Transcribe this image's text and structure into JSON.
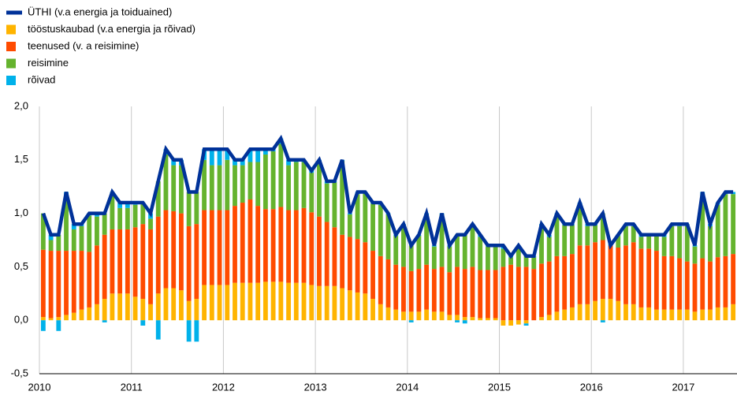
{
  "chart_data": {
    "type": "bar",
    "stacked": true,
    "categories": [
      "2010",
      null,
      null,
      null,
      null,
      null,
      null,
      null,
      null,
      null,
      null,
      null,
      "2011",
      null,
      null,
      null,
      null,
      null,
      null,
      null,
      null,
      null,
      null,
      null,
      "2012",
      null,
      null,
      null,
      null,
      null,
      null,
      null,
      null,
      null,
      null,
      null,
      "2013",
      null,
      null,
      null,
      null,
      null,
      null,
      null,
      null,
      null,
      null,
      null,
      "2014",
      null,
      null,
      null,
      null,
      null,
      null,
      null,
      null,
      null,
      null,
      null,
      "2015",
      null,
      null,
      null,
      null,
      null,
      null,
      null,
      null,
      null,
      null,
      null,
      "2016",
      null,
      null,
      null,
      null,
      null,
      null,
      null,
      null,
      null,
      null,
      null,
      "2017",
      null,
      null,
      null,
      null,
      null,
      null
    ],
    "ylim": [
      -0.5,
      2.0
    ],
    "yticks": [
      {
        "value": -0.5,
        "label": "-0,5"
      },
      {
        "value": 0,
        "label": "0,0"
      },
      {
        "value": 0.5,
        "label": "0,5"
      },
      {
        "value": 1.0,
        "label": "1,0"
      },
      {
        "value": 1.5,
        "label": "1,5"
      },
      {
        "value": 2.0,
        "label": "2,0"
      }
    ],
    "legend": "top-left",
    "series": [
      {
        "name": "ÜTHI (v.a energia ja toiduained)",
        "type": "line",
        "color": "#003299",
        "values": [
          1.0,
          0.8,
          0.8,
          1.2,
          0.9,
          0.9,
          1.0,
          1.0,
          1.0,
          1.2,
          1.1,
          1.1,
          1.1,
          1.1,
          1.0,
          1.3,
          1.6,
          1.5,
          1.5,
          1.2,
          1.2,
          1.6,
          1.6,
          1.6,
          1.6,
          1.5,
          1.5,
          1.6,
          1.6,
          1.6,
          1.6,
          1.7,
          1.5,
          1.5,
          1.5,
          1.4,
          1.5,
          1.3,
          1.3,
          1.5,
          1.0,
          1.2,
          1.2,
          1.1,
          1.1,
          1.0,
          0.8,
          0.9,
          0.7,
          0.8,
          1.0,
          0.7,
          1.0,
          0.7,
          0.8,
          0.8,
          0.9,
          0.8,
          0.7,
          0.7,
          0.7,
          0.6,
          0.7,
          0.6,
          0.6,
          0.9,
          0.8,
          1.0,
          0.9,
          0.9,
          1.1,
          0.9,
          0.9,
          1.0,
          0.7,
          0.8,
          0.9,
          0.9,
          0.8,
          0.8,
          0.8,
          0.8,
          0.9,
          0.9,
          0.9,
          0.7,
          1.2,
          0.9,
          1.1,
          1.2,
          1.2
        ]
      },
      {
        "name": "tööstuskaubad (v.a energia ja rõivad)",
        "color": "#ffb400",
        "values": [
          0.03,
          0.02,
          0.03,
          0.05,
          0.07,
          0.1,
          0.12,
          0.15,
          0.2,
          0.25,
          0.25,
          0.25,
          0.22,
          0.2,
          0.15,
          0.25,
          0.3,
          0.3,
          0.28,
          0.18,
          0.2,
          0.33,
          0.33,
          0.33,
          0.33,
          0.35,
          0.35,
          0.35,
          0.35,
          0.36,
          0.36,
          0.36,
          0.35,
          0.35,
          0.35,
          0.33,
          0.32,
          0.32,
          0.32,
          0.3,
          0.28,
          0.26,
          0.25,
          0.2,
          0.15,
          0.12,
          0.1,
          0.08,
          0.08,
          0.08,
          0.1,
          0.08,
          0.08,
          0.05,
          0.05,
          0.03,
          0.03,
          0.02,
          0.02,
          0.02,
          -0.05,
          -0.05,
          -0.04,
          -0.03,
          0,
          0.03,
          0.05,
          0.08,
          0.1,
          0.12,
          0.15,
          0.15,
          0.18,
          0.2,
          0.2,
          0.18,
          0.15,
          0.15,
          0.12,
          0.12,
          0.1,
          0.1,
          0.1,
          0.1,
          0.1,
          0.08,
          0.1,
          0.1,
          0.12,
          0.12,
          0.15
        ]
      },
      {
        "name": "teenused (v. a reisimine)",
        "color": "#ff4b00",
        "values": [
          0.63,
          0.63,
          0.62,
          0.6,
          0.58,
          0.55,
          0.52,
          0.55,
          0.6,
          0.6,
          0.6,
          0.6,
          0.65,
          0.7,
          0.7,
          0.72,
          0.73,
          0.72,
          0.72,
          0.7,
          0.7,
          0.7,
          0.7,
          0.7,
          0.7,
          0.72,
          0.75,
          0.78,
          0.72,
          0.68,
          0.68,
          0.7,
          0.68,
          0.68,
          0.7,
          0.68,
          0.65,
          0.6,
          0.55,
          0.5,
          0.5,
          0.5,
          0.48,
          0.45,
          0.45,
          0.45,
          0.42,
          0.42,
          0.38,
          0.4,
          0.42,
          0.4,
          0.42,
          0.4,
          0.45,
          0.45,
          0.47,
          0.45,
          0.45,
          0.45,
          0.5,
          0.52,
          0.5,
          0.5,
          0.48,
          0.5,
          0.5,
          0.52,
          0.5,
          0.5,
          0.55,
          0.55,
          0.55,
          0.55,
          0.5,
          0.5,
          0.55,
          0.58,
          0.55,
          0.55,
          0.55,
          0.5,
          0.5,
          0.48,
          0.45,
          0.45,
          0.48,
          0.45,
          0.47,
          0.48,
          0.47
        ]
      },
      {
        "name": "reisimine",
        "color": "#65b32e",
        "values": [
          0.34,
          0.1,
          0.15,
          0.52,
          0.2,
          0.23,
          0.34,
          0.27,
          0.2,
          0.33,
          0.2,
          0.2,
          0.21,
          0.2,
          0.1,
          0.33,
          0.52,
          0.43,
          0.45,
          0.32,
          0.3,
          0.47,
          0.42,
          0.42,
          0.47,
          0.38,
          0.35,
          0.35,
          0.41,
          0.51,
          0.54,
          0.59,
          0.42,
          0.45,
          0.43,
          0.37,
          0.51,
          0.36,
          0.42,
          0.69,
          0.21,
          0.42,
          0.46,
          0.44,
          0.48,
          0.42,
          0.27,
          0.39,
          0.24,
          0.31,
          0.47,
          0.21,
          0.49,
          0.24,
          0.3,
          0.32,
          0.39,
          0.31,
          0.22,
          0.22,
          0.17,
          0.07,
          0.19,
          0.1,
          0.11,
          0.35,
          0.23,
          0.38,
          0.29,
          0.27,
          0.38,
          0.18,
          0.16,
          0.25,
          0,
          0.11,
          0.18,
          0.15,
          0.11,
          0.12,
          0.14,
          0.18,
          0.28,
          0.3,
          0.33,
          0.16,
          0.59,
          0.33,
          0.49,
          0.58,
          0.56
        ]
      },
      {
        "name": "rõivad",
        "color": "#00b1ea",
        "values": [
          -0.1,
          0.05,
          -0.1,
          0.03,
          0.05,
          0.02,
          0.02,
          0.03,
          -0.02,
          0.02,
          0.05,
          0.05,
          0.02,
          -0.05,
          0.05,
          -0.18,
          0.05,
          0.05,
          0.05,
          -0.2,
          -0.2,
          0.1,
          0.15,
          0.15,
          0.1,
          0.05,
          0.05,
          0.12,
          0.12,
          0.05,
          0.02,
          0.05,
          0.05,
          0.02,
          0.02,
          0.02,
          0.02,
          0.02,
          0.01,
          0.01,
          0.01,
          0.02,
          0.01,
          0.01,
          0.02,
          0.01,
          0.01,
          0.01,
          -0.02,
          0.01,
          0.01,
          0.01,
          0.01,
          0.01,
          -0.02,
          -0.03,
          0.01,
          0.02,
          0.01,
          0.01,
          0.03,
          0.01,
          0.01,
          -0.02,
          0.01,
          0.02,
          0.02,
          0.02,
          0.01,
          0.01,
          0.02,
          0.02,
          0.01,
          -0.02,
          0.01,
          0.01,
          0.02,
          0.02,
          0.02,
          0.01,
          0.01,
          0.02,
          0.02,
          0.02,
          0.02,
          0.01,
          0.03,
          0.02,
          0.02,
          0.02,
          0.02
        ]
      }
    ]
  }
}
